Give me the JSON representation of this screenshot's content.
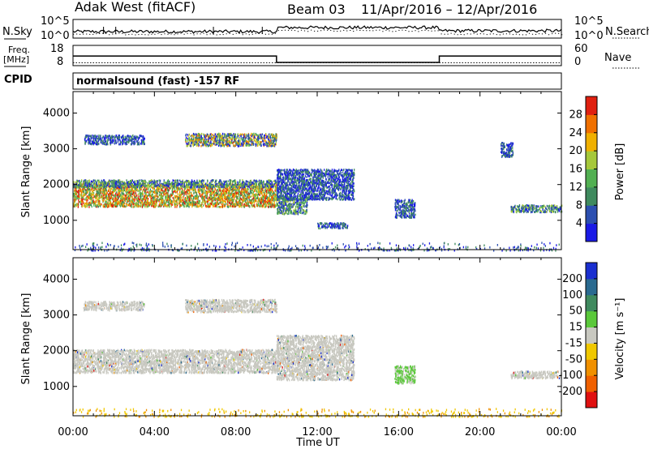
{
  "header": {
    "radar": "Adak West (fitACF)",
    "beam": "Beam 03",
    "dates": "11/Apr/2016 – 12/Apr/2016",
    "program": "normalsound (fast) -157 RF"
  },
  "strip_labels": {
    "nsky": "N.Sky",
    "nsearch": "N.Search",
    "freq_line1": "Freq.",
    "freq_line2": "[MHz]",
    "nave": "Nave",
    "cpid": "CPID"
  },
  "strip_ticks": {
    "nsky_left": [
      "10^5",
      "10^0"
    ],
    "nsearch_right": [
      "10^5",
      "10^0"
    ],
    "freq_left": [
      "18",
      "8"
    ],
    "nave_right": [
      "60",
      "0"
    ]
  },
  "strip_series": {
    "freq_mhz_steps": [
      {
        "t": 0,
        "v": 13.4
      },
      {
        "t": 10.0,
        "v": 9.8
      },
      {
        "t": 18.0,
        "v": 13.4
      },
      {
        "t": 24,
        "v": 13.4
      }
    ],
    "nave_constant": 10
  },
  "chart_data": [
    {
      "type": "heatmap",
      "panel": "power",
      "ylabel": "Slant Range [km]",
      "xlabel": "Time UT",
      "x_ticks": [
        "00:00",
        "04:00",
        "08:00",
        "12:00",
        "16:00",
        "20:00",
        "00:00"
      ],
      "x_range_hours": [
        0,
        24
      ],
      "y_ticks": [
        "1000",
        "2000",
        "3000",
        "4000"
      ],
      "y_range_km": [
        180,
        4600
      ],
      "colorbar_label": "Power [dB]",
      "colorbar_ticks": [
        "4",
        "8",
        "12",
        "16",
        "20",
        "24",
        "28"
      ],
      "colorbar_colors": [
        "#1a1ae6",
        "#2c4fb0",
        "#3f8a5e",
        "#52b052",
        "#a6c83a",
        "#f0b000",
        "#f07000",
        "#e02010"
      ],
      "scatter_regions": [
        {
          "t0": 0.0,
          "t1": 10.0,
          "r0": 1400,
          "r1": 2050,
          "level": "high"
        },
        {
          "t0": 0.0,
          "t1": 10.0,
          "r0": 1950,
          "r1": 2150,
          "level": "mid"
        },
        {
          "t0": 0.5,
          "t1": 3.5,
          "r0": 3150,
          "r1": 3400,
          "level": "low"
        },
        {
          "t0": 5.5,
          "t1": 10.0,
          "r0": 3100,
          "r1": 3450,
          "level": "mixed"
        },
        {
          "t0": 10.0,
          "t1": 11.5,
          "r0": 1200,
          "r1": 1700,
          "level": "mid"
        },
        {
          "t0": 10.0,
          "t1": 13.8,
          "r0": 1600,
          "r1": 2450,
          "level": "low"
        },
        {
          "t0": 12.0,
          "t1": 13.5,
          "r0": 800,
          "r1": 950,
          "level": "low"
        },
        {
          "t0": 15.8,
          "t1": 16.8,
          "r0": 1100,
          "r1": 1600,
          "level": "low"
        },
        {
          "t0": 21.0,
          "t1": 21.6,
          "r0": 2800,
          "r1": 3200,
          "level": "low"
        },
        {
          "t0": 21.5,
          "t1": 24.0,
          "r0": 1250,
          "r1": 1450,
          "level": "mid"
        },
        {
          "t0": 0.0,
          "t1": 24.0,
          "r0": 180,
          "r1": 400,
          "level": "noise"
        }
      ]
    },
    {
      "type": "heatmap",
      "panel": "velocity",
      "ylabel": "Slant Range [km]",
      "xlabel": "Time UT",
      "x_ticks": [
        "00:00",
        "04:00",
        "08:00",
        "12:00",
        "16:00",
        "20:00",
        "00:00"
      ],
      "x_range_hours": [
        0,
        24
      ],
      "y_ticks": [
        "1000",
        "2000",
        "3000",
        "4000"
      ],
      "y_range_km": [
        180,
        4600
      ],
      "colorbar_label": "Velocity [m s⁻¹]",
      "colorbar_ticks": [
        "200",
        "100",
        "50",
        "15",
        "-15",
        "-50",
        "-100",
        "-200"
      ],
      "colorbar_colors": [
        "#1a2fd0",
        "#2a6a90",
        "#3f8a5e",
        "#5ac83a",
        "#c8c8c0",
        "#f0c800",
        "#f09000",
        "#f06000",
        "#e01010"
      ],
      "scatter_regions": [
        {
          "t0": 0.0,
          "t1": 10.0,
          "r0": 1400,
          "r1": 2050,
          "level": "gray"
        },
        {
          "t0": 0.5,
          "t1": 3.5,
          "r0": 3150,
          "r1": 3400,
          "level": "gray"
        },
        {
          "t0": 5.5,
          "t1": 10.0,
          "r0": 3100,
          "r1": 3450,
          "level": "gray"
        },
        {
          "t0": 10.0,
          "t1": 13.8,
          "r0": 1200,
          "r1": 2450,
          "level": "gray"
        },
        {
          "t0": 15.8,
          "t1": 16.8,
          "r0": 1100,
          "r1": 1600,
          "level": "green"
        },
        {
          "t0": 21.5,
          "t1": 24.0,
          "r0": 1250,
          "r1": 1450,
          "level": "gray"
        },
        {
          "t0": 0.0,
          "t1": 24.0,
          "r0": 180,
          "r1": 400,
          "level": "orange"
        }
      ]
    }
  ]
}
